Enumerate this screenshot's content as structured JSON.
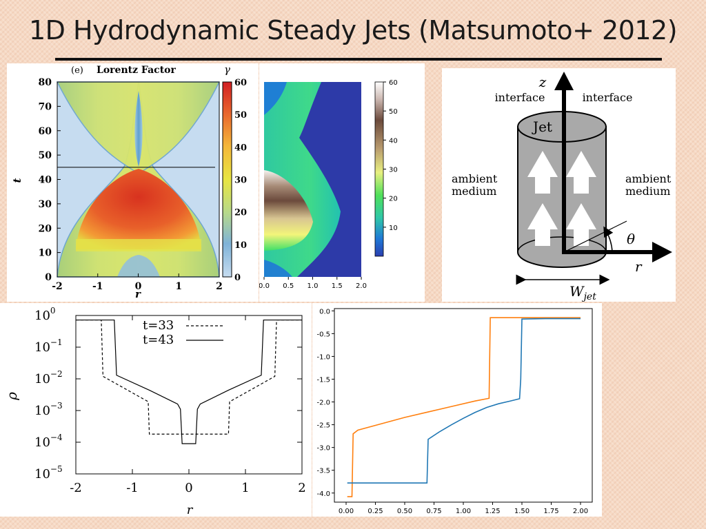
{
  "slide": {
    "title": "1D Hydrodynamic Steady Jets (Matsumoto+ 2012)"
  },
  "panel_lorentz": {
    "tag": "(e)",
    "heading": "Lorentz Factor",
    "cbar_symbol": "γ",
    "xlabel": "r",
    "ylabel": "t"
  },
  "schematic": {
    "z_label": "z",
    "r_label": "r",
    "theta_label": "θ",
    "interface_left": "interface",
    "interface_right": "interface",
    "jet_label": "Jet",
    "ambient_left_1": "ambient",
    "ambient_left_2": "medium",
    "ambient_right_1": "ambient",
    "ambient_right_2": "medium",
    "width_label_main": "W",
    "width_label_sub": "jet",
    "colors": {
      "jet_fill": "#a9a9a9",
      "arrow_fill": "#ffffff"
    }
  },
  "chart_data": [
    {
      "type": "heatmap",
      "xlabel": "r",
      "ylabel": "t",
      "xlim": [
        -2,
        2
      ],
      "ylim": [
        0,
        80
      ],
      "x_ticks": [
        -2,
        -1,
        0,
        1,
        2
      ],
      "y_ticks": [
        0,
        10,
        20,
        30,
        40,
        50,
        60,
        70,
        80
      ],
      "colorbar": {
        "label": "γ",
        "range": [
          0,
          60
        ],
        "ticks": [
          0,
          10,
          20,
          30,
          40,
          50,
          60
        ]
      },
      "annotation_line_t": 45
    },
    {
      "type": "heatmap",
      "xlim": [
        0,
        2
      ],
      "ylim": [
        0,
        80
      ],
      "x_ticks": [
        "0.0",
        "0.5",
        "1.0",
        "1.5",
        "2.0"
      ],
      "colorbar": {
        "range": [
          0,
          60
        ],
        "ticks": [
          10,
          20,
          30,
          40,
          50,
          60
        ]
      }
    },
    {
      "type": "line",
      "xlabel": "r",
      "ylabel": "ρ",
      "xlim": [
        -2,
        2
      ],
      "ylim": [
        1e-05,
        1
      ],
      "log_y": true,
      "x_ticks": [
        "-2",
        "-1",
        "0",
        "1",
        "2"
      ],
      "y_ticks": [
        {
          "base": "10",
          "exp": "0"
        },
        {
          "base": "10",
          "exp": "−1"
        },
        {
          "base": "10",
          "exp": "−2"
        },
        {
          "base": "10",
          "exp": "−3"
        },
        {
          "base": "10",
          "exp": "−4"
        },
        {
          "base": "10",
          "exp": "−5"
        }
      ],
      "legend_position": "top-center",
      "series": [
        {
          "name": "t=33",
          "style": "dashed",
          "x": [
            -2,
            -1.55,
            -1.52,
            -0.72,
            -0.7,
            0.7,
            0.72,
            1.52,
            1.55,
            2
          ],
          "y": [
            0.72,
            0.72,
            0.012,
            0.0019,
            0.00018,
            0.00018,
            0.0019,
            0.012,
            0.72,
            0.72
          ]
        },
        {
          "name": "t=43",
          "style": "solid",
          "x": [
            -2,
            -1.32,
            -1.28,
            -0.7,
            -0.2,
            -0.15,
            -0.12,
            0.12,
            0.15,
            0.2,
            0.7,
            1.28,
            1.32,
            2
          ],
          "y": [
            0.72,
            0.72,
            0.013,
            0.0044,
            0.0016,
            0.0011,
            9e-05,
            9e-05,
            0.0011,
            0.0016,
            0.0044,
            0.013,
            0.72,
            0.72
          ]
        }
      ]
    },
    {
      "type": "line",
      "xlim": [
        0,
        2
      ],
      "ylim": [
        -4.1,
        0
      ],
      "x_ticks": [
        "0.00",
        "0.25",
        "0.50",
        "0.75",
        "1.00",
        "1.25",
        "1.50",
        "1.75",
        "2.00"
      ],
      "y_ticks": [
        "0.0",
        "-0.5",
        "-1.0",
        "-1.5",
        "-2.0",
        "-2.5",
        "-3.0",
        "-3.5",
        "-4.0"
      ],
      "series": [
        {
          "color": "#ff7f0e",
          "x": [
            0.01,
            0.05,
            0.06,
            0.1,
            0.3,
            0.5,
            0.7,
            0.9,
            1.1,
            1.22,
            1.23,
            1.6,
            2.0
          ],
          "y": [
            -4.08,
            -4.08,
            -2.7,
            -2.62,
            -2.48,
            -2.34,
            -2.22,
            -2.1,
            -1.98,
            -1.92,
            -0.15,
            -0.15,
            -0.15
          ]
        },
        {
          "color": "#1f77b4",
          "x": [
            0.01,
            0.2,
            0.4,
            0.69,
            0.7,
            0.8,
            0.9,
            1.0,
            1.1,
            1.2,
            1.3,
            1.4,
            1.48,
            1.49,
            1.5,
            1.7,
            2.0
          ],
          "y": [
            -3.78,
            -3.78,
            -3.78,
            -3.78,
            -2.82,
            -2.65,
            -2.5,
            -2.36,
            -2.23,
            -2.12,
            -2.04,
            -1.98,
            -1.93,
            -1.5,
            -0.18,
            -0.17,
            -0.17
          ]
        }
      ]
    }
  ]
}
